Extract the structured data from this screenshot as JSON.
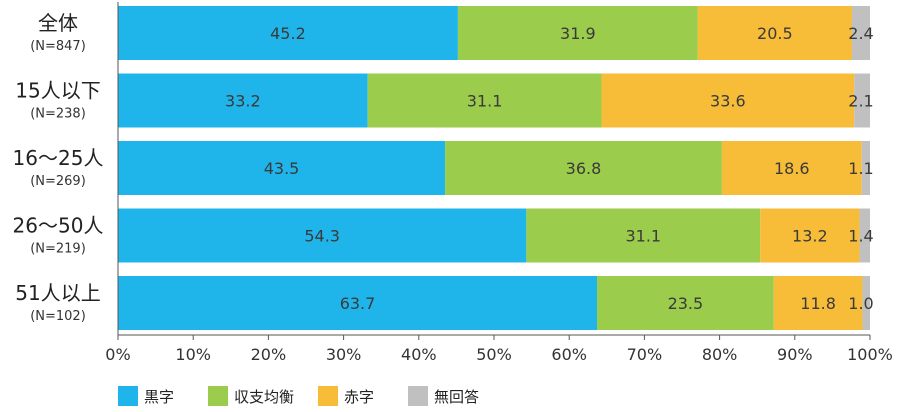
{
  "chart_data": {
    "type": "bar",
    "orientation": "horizontal",
    "stacked": true,
    "percent_stacked": true,
    "categories": [
      {
        "name": "全体",
        "n": "(N=847)"
      },
      {
        "name": "15人以下",
        "n": "(N=238)"
      },
      {
        "name": "16～25人",
        "n": "(N=269)"
      },
      {
        "name": "26～50人",
        "n": "(N=219)"
      },
      {
        "name": "51人以上",
        "n": "(N=102)"
      }
    ],
    "series": [
      {
        "name": "黒字",
        "color": "#1fb5ea",
        "values": [
          45.2,
          33.2,
          43.5,
          54.3,
          63.7
        ],
        "labels": [
          "45.2",
          "33.2",
          "43.5",
          "54.3",
          "63.7"
        ]
      },
      {
        "name": "収支均衡",
        "color": "#9bcc4b",
        "values": [
          31.9,
          31.1,
          36.8,
          31.1,
          23.5
        ],
        "labels": [
          "31.9",
          "31.1",
          "36.8",
          "31.1",
          "23.5"
        ]
      },
      {
        "name": "赤字",
        "color": "#f7bd38",
        "values": [
          20.5,
          33.6,
          18.6,
          13.2,
          11.8
        ],
        "labels": [
          "20.5",
          "33.6",
          "18.6",
          "13.2",
          "11.8"
        ]
      },
      {
        "name": "無回答",
        "color": "#c0c0c0",
        "values": [
          2.4,
          2.1,
          1.1,
          1.4,
          1.0
        ],
        "labels": [
          "2.4",
          "2.1",
          "1.1",
          "1.4",
          "1.0"
        ]
      }
    ],
    "xlim": [
      0,
      100
    ],
    "x_ticks": [
      "0%",
      "10%",
      "20%",
      "30%",
      "40%",
      "50%",
      "60%",
      "70%",
      "80%",
      "90%",
      "100%"
    ],
    "grid": false,
    "legend_position": "bottom-left"
  }
}
